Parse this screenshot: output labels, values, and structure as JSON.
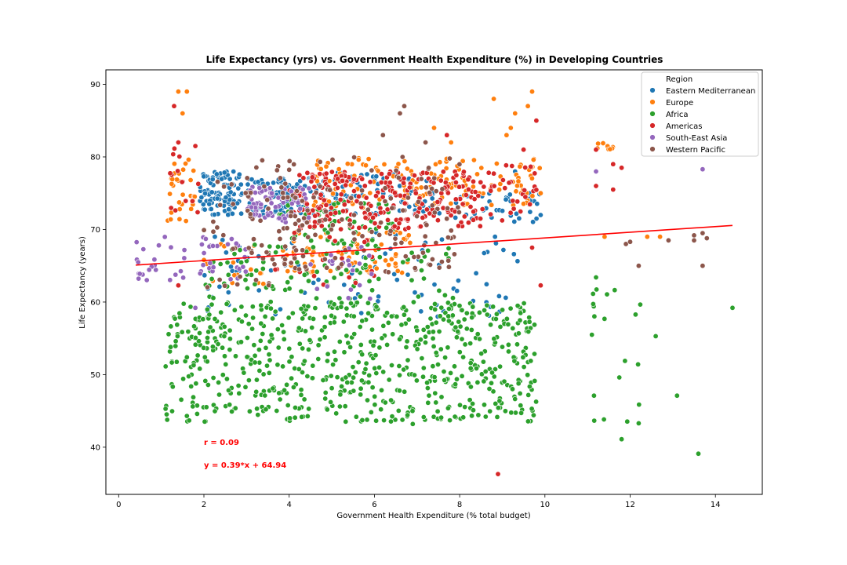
{
  "chart_data": {
    "type": "scatter",
    "title": "Life Expectancy (yrs) vs. Government Health Expenditure (%) in Developing Countries",
    "xlabel": "Government Health Expenditure (% total budget)",
    "ylabel": "Life Expectancy (years)",
    "xlim": [
      -0.3,
      15.1
    ],
    "ylim": [
      33.5,
      92
    ],
    "xticks": [
      0,
      2,
      4,
      6,
      8,
      10,
      12,
      14
    ],
    "yticks": [
      40,
      50,
      60,
      70,
      80,
      90
    ],
    "grid": false,
    "legend": {
      "title": "Region",
      "placement": "top-right",
      "entries": [
        "Eastern Mediterranean",
        "Europe",
        "Africa",
        "Americas",
        "South-East Asia",
        "Western Pacific"
      ]
    },
    "colors": {
      "Eastern Mediterranean": "#1f77b4",
      "Europe": "#ff7f0e",
      "Africa": "#2ca02c",
      "Americas": "#d62728",
      "South-East Asia": "#9467bd",
      "Western Pacific": "#8c564b",
      "trend": "#ff0000"
    },
    "series": [
      {
        "name": "Eastern Mediterranean",
        "clusters": [
          {
            "x": [
              1.9,
              2.9
            ],
            "y": [
              72,
              78
            ],
            "n": 110
          },
          {
            "x": [
              3.0,
              4.2
            ],
            "y": [
              72,
              77
            ],
            "n": 70
          },
          {
            "x": [
              4.0,
              7.5
            ],
            "y": [
              72,
              78
            ],
            "n": 90
          },
          {
            "x": [
              7.5,
              9.9
            ],
            "y": [
              71,
              75
            ],
            "n": 40
          },
          {
            "x": [
              2.0,
              9.5
            ],
            "y": [
              58,
              70
            ],
            "n": 90
          }
        ],
        "points": [
          {
            "x": 9.9,
            "y": 72
          },
          {
            "x": 9.3,
            "y": 78
          }
        ]
      },
      {
        "name": "Europe",
        "clusters": [
          {
            "x": [
              1.1,
              1.8
            ],
            "y": [
              71,
              80
            ],
            "n": 30
          },
          {
            "x": [
              4.5,
              9.9
            ],
            "y": [
              73,
              80
            ],
            "n": 150
          },
          {
            "x": [
              4.0,
              7.0
            ],
            "y": [
              64,
              70
            ],
            "n": 70
          },
          {
            "x": [
              1.8,
              4.0
            ],
            "y": [
              62,
              68
            ],
            "n": 20
          },
          {
            "x": [
              11.2,
              11.6
            ],
            "y": [
              81,
              82
            ],
            "n": 8
          }
        ],
        "points": [
          {
            "x": 1.4,
            "y": 89
          },
          {
            "x": 1.6,
            "y": 89
          },
          {
            "x": 1.5,
            "y": 86
          },
          {
            "x": 8.8,
            "y": 88
          },
          {
            "x": 9.7,
            "y": 89
          },
          {
            "x": 9.3,
            "y": 86
          },
          {
            "x": 9.6,
            "y": 87
          },
          {
            "x": 9.1,
            "y": 83
          },
          {
            "x": 9.2,
            "y": 84
          },
          {
            "x": 7.4,
            "y": 84
          },
          {
            "x": 9.8,
            "y": 85
          },
          {
            "x": 7.8,
            "y": 82
          },
          {
            "x": 11.4,
            "y": 69
          },
          {
            "x": 12.7,
            "y": 69
          },
          {
            "x": 12.4,
            "y": 69
          },
          {
            "x": 9.9,
            "y": 75
          }
        ]
      },
      {
        "name": "Africa",
        "clusters": [
          {
            "x": [
              1.1,
              9.8
            ],
            "y": [
              43.5,
              60
            ],
            "n": 650
          },
          {
            "x": [
              2.0,
              8.0
            ],
            "y": [
              58,
              68
            ],
            "n": 120
          },
          {
            "x": [
              3.5,
              6.5
            ],
            "y": [
              68,
              74
            ],
            "n": 60
          },
          {
            "x": [
              11.1,
              12.3
            ],
            "y": [
              41,
              63
            ],
            "n": 20
          }
        ],
        "points": [
          {
            "x": 1.6,
            "y": 44.3
          },
          {
            "x": 1.1,
            "y": 45.3
          },
          {
            "x": 12.6,
            "y": 55.3
          },
          {
            "x": 13.1,
            "y": 47.1
          },
          {
            "x": 14.4,
            "y": 59.2
          },
          {
            "x": 13.6,
            "y": 39.1
          },
          {
            "x": 12.2,
            "y": 43.3
          },
          {
            "x": 11.8,
            "y": 41.1
          },
          {
            "x": 11.2,
            "y": 63.4
          },
          {
            "x": 6.9,
            "y": 43.2
          }
        ]
      },
      {
        "name": "Americas",
        "clusters": [
          {
            "x": [
              4.0,
              8.5
            ],
            "y": [
              70,
              78
            ],
            "n": 260
          },
          {
            "x": [
              3.5,
              6.0
            ],
            "y": [
              62,
              70
            ],
            "n": 20
          },
          {
            "x": [
              8.5,
              9.9
            ],
            "y": [
              70,
              79
            ],
            "n": 30
          },
          {
            "x": [
              1.2,
              1.9
            ],
            "y": [
              72,
              82
            ],
            "n": 14
          }
        ],
        "points": [
          {
            "x": 1.3,
            "y": 87
          },
          {
            "x": 1.4,
            "y": 82
          },
          {
            "x": 1.8,
            "y": 81.5
          },
          {
            "x": 7.7,
            "y": 83
          },
          {
            "x": 9.8,
            "y": 85
          },
          {
            "x": 9.5,
            "y": 81
          },
          {
            "x": 11.2,
            "y": 81
          },
          {
            "x": 11.2,
            "y": 76
          },
          {
            "x": 11.6,
            "y": 75.5
          },
          {
            "x": 11.8,
            "y": 78.5
          },
          {
            "x": 11.6,
            "y": 79
          },
          {
            "x": 8.9,
            "y": 36.3
          },
          {
            "x": 1.4,
            "y": 62.3
          },
          {
            "x": 9.9,
            "y": 62.3
          },
          {
            "x": 9.7,
            "y": 67.5
          }
        ]
      },
      {
        "name": "South-East Asia",
        "clusters": [
          {
            "x": [
              3.0,
              4.5
            ],
            "y": [
              71,
              76
            ],
            "n": 80
          },
          {
            "x": [
              0.4,
              3.0
            ],
            "y": [
              63,
              69
            ],
            "n": 50
          },
          {
            "x": [
              4.5,
              6.0
            ],
            "y": [
              60,
              68
            ],
            "n": 20
          }
        ],
        "points": [
          {
            "x": 11.2,
            "y": 78
          },
          {
            "x": 13.7,
            "y": 78.3
          },
          {
            "x": 1.8,
            "y": 59.2
          }
        ]
      },
      {
        "name": "Western Pacific",
        "clusters": [
          {
            "x": [
              3.0,
              8.0
            ],
            "y": [
              64,
              80
            ],
            "n": 150
          },
          {
            "x": [
              2.0,
              4.5
            ],
            "y": [
              62,
              78
            ],
            "n": 40
          }
        ],
        "points": [
          {
            "x": 6.7,
            "y": 87
          },
          {
            "x": 6.6,
            "y": 86
          },
          {
            "x": 6.2,
            "y": 83
          },
          {
            "x": 7.2,
            "y": 82
          },
          {
            "x": 11.9,
            "y": 68
          },
          {
            "x": 12.0,
            "y": 68.3
          },
          {
            "x": 12.2,
            "y": 65
          },
          {
            "x": 12.9,
            "y": 68.5
          },
          {
            "x": 13.5,
            "y": 69.2
          },
          {
            "x": 13.8,
            "y": 68.8
          },
          {
            "x": 13.5,
            "y": 68.5
          },
          {
            "x": 13.7,
            "y": 65
          },
          {
            "x": 13.7,
            "y": 69.5
          }
        ]
      }
    ],
    "trendline": {
      "x": [
        0.4,
        14.4
      ],
      "slope": 0.39,
      "intercept": 64.94
    },
    "annotations": [
      {
        "text": "r = 0.09",
        "x": 2.0,
        "y": 40.3
      },
      {
        "text": "y = 0.39*x + 64.94",
        "x": 2.0,
        "y": 37.2
      }
    ]
  }
}
